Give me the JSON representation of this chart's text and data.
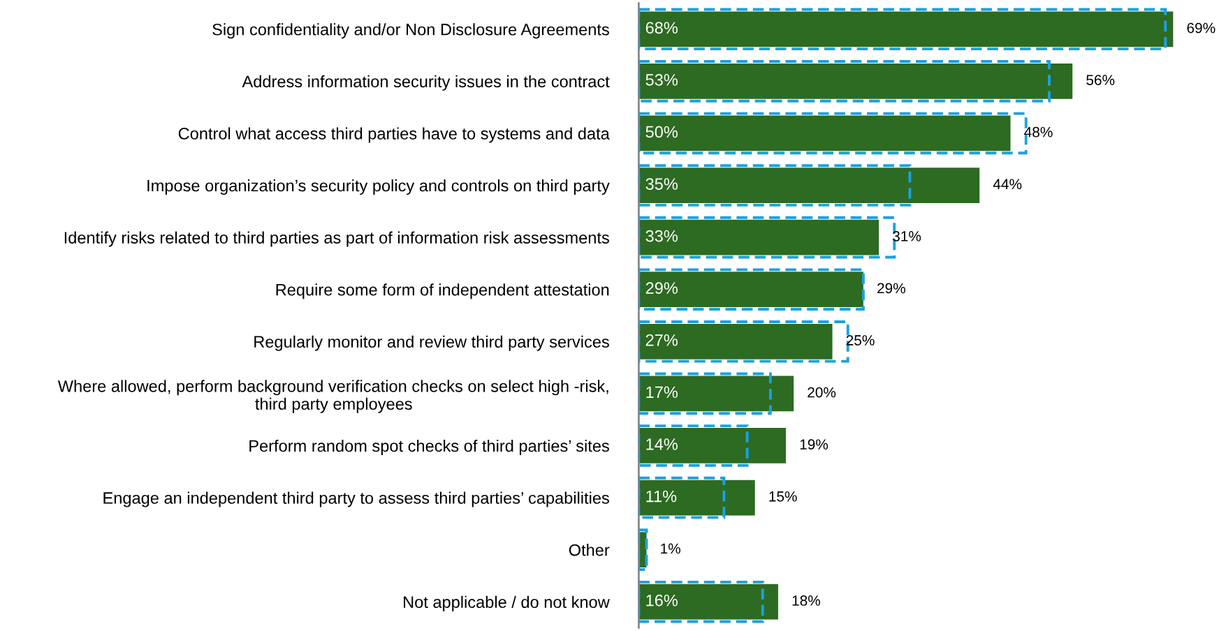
{
  "chart_data": {
    "type": "bar",
    "orientation": "horizontal",
    "categories": [
      "Sign confidentiality and/or Non Disclosure Agreements",
      "Address information security issues in the contract",
      "Control what access third parties have to systems and data",
      "Impose organization’s security policy and controls on third party",
      "Identify risks related to third parties as part of information risk assessments",
      "Require some form of independent attestation",
      "Regularly monitor and review third party services",
      "Where allowed, perform background verification checks on select high -risk,\nthird party employees",
      "Perform random spot checks of third parties’ sites",
      "Engage an independent third party to assess third parties’ capabilities",
      "Other",
      "Not applicable / do not know"
    ],
    "series": [
      {
        "color": "#2d6a22",
        "values": [
          69,
          56,
          48,
          44,
          31,
          29,
          25,
          20,
          19,
          15,
          1,
          18
        ],
        "value_labels": [
          "69%",
          "56%",
          "48%",
          "44%",
          "31%",
          "29%",
          "25%",
          "20%",
          "19%",
          "15%",
          "1%",
          "18%"
        ]
      },
      {
        "color": "#1ba1e2",
        "line_style": "dashed",
        "values": [
          68,
          53,
          50,
          35,
          33,
          29,
          27,
          17,
          14,
          11,
          1,
          16
        ],
        "value_labels": [
          "68%",
          "53%",
          "50%",
          "35%",
          "33%",
          "29%",
          "27%",
          "17%",
          "14%",
          "11%",
          null,
          "16%"
        ]
      }
    ]
  }
}
